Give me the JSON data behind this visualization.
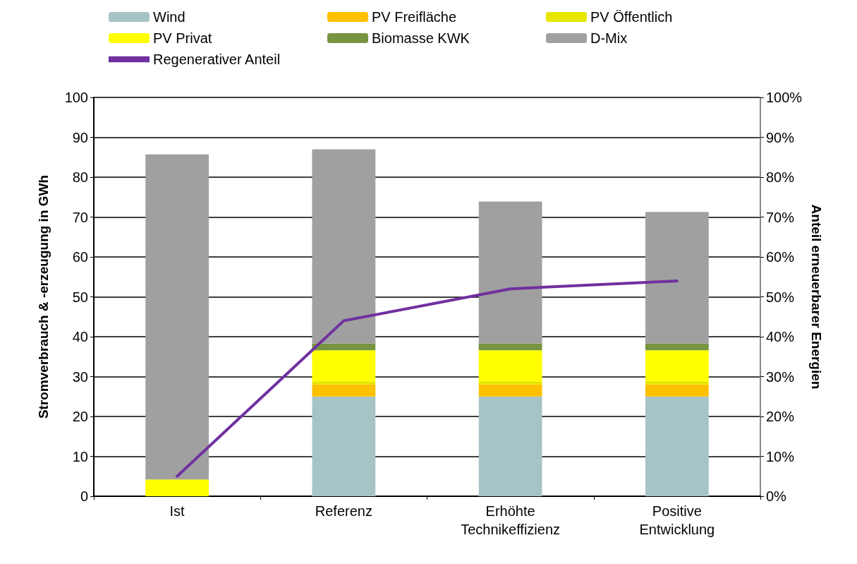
{
  "chart_data": {
    "type": "bar",
    "stacked": true,
    "categories": [
      "Ist",
      "Referenz",
      "Erhöhte\nTechnikeffizienz",
      "Positive\nEntwicklung"
    ],
    "ylabel": "Stromverbrauch & -erzeugung in GWh",
    "y2label": "Anteil erneuerbarer Energien",
    "ylim": [
      0,
      100
    ],
    "yticks": [
      0,
      10,
      20,
      30,
      40,
      50,
      60,
      70,
      80,
      90,
      100
    ],
    "y2lim": [
      0,
      100
    ],
    "y2ticks": [
      {
        "value": 0,
        "label": "0%"
      },
      {
        "value": 10,
        "label": "10%"
      },
      {
        "value": 20,
        "label": "20%"
      },
      {
        "value": 30,
        "label": "30%"
      },
      {
        "value": 40,
        "label": "40%"
      },
      {
        "value": 50,
        "label": "50%"
      },
      {
        "value": 60,
        "label": "60%"
      },
      {
        "value": 70,
        "label": "70%"
      },
      {
        "value": 80,
        "label": "80%"
      },
      {
        "value": 90,
        "label": "90%"
      },
      {
        "value": 100,
        "label": "100%"
      }
    ],
    "grid": "y",
    "legend": "top",
    "marker": "none",
    "series": [
      {
        "name": "Wind",
        "color": "#a6c4c6",
        "values": [
          0,
          25,
          25,
          25
        ]
      },
      {
        "name": "PV Freifläche",
        "color": "#ffc000",
        "values": [
          0,
          3,
          3,
          3
        ]
      },
      {
        "name": "PV Öffentlich",
        "color": "#e6e600",
        "values": [
          0,
          0.8,
          0.8,
          0.8
        ]
      },
      {
        "name": "PV Privat",
        "color": "#ffff00",
        "values": [
          4.2,
          7.8,
          7.8,
          7.8
        ]
      },
      {
        "name": "Biomasse KWK",
        "color": "#779440",
        "values": [
          0,
          1.7,
          1.7,
          1.7
        ]
      },
      {
        "name": "D-Mix",
        "color": "#a0a0a0",
        "values": [
          81.5,
          48.7,
          35.6,
          33
        ]
      },
      {
        "name": "Regenerativer Anteil",
        "type": "line",
        "axis": "y2",
        "color": "#7030a0",
        "values": [
          5,
          44,
          52,
          54
        ]
      }
    ]
  }
}
